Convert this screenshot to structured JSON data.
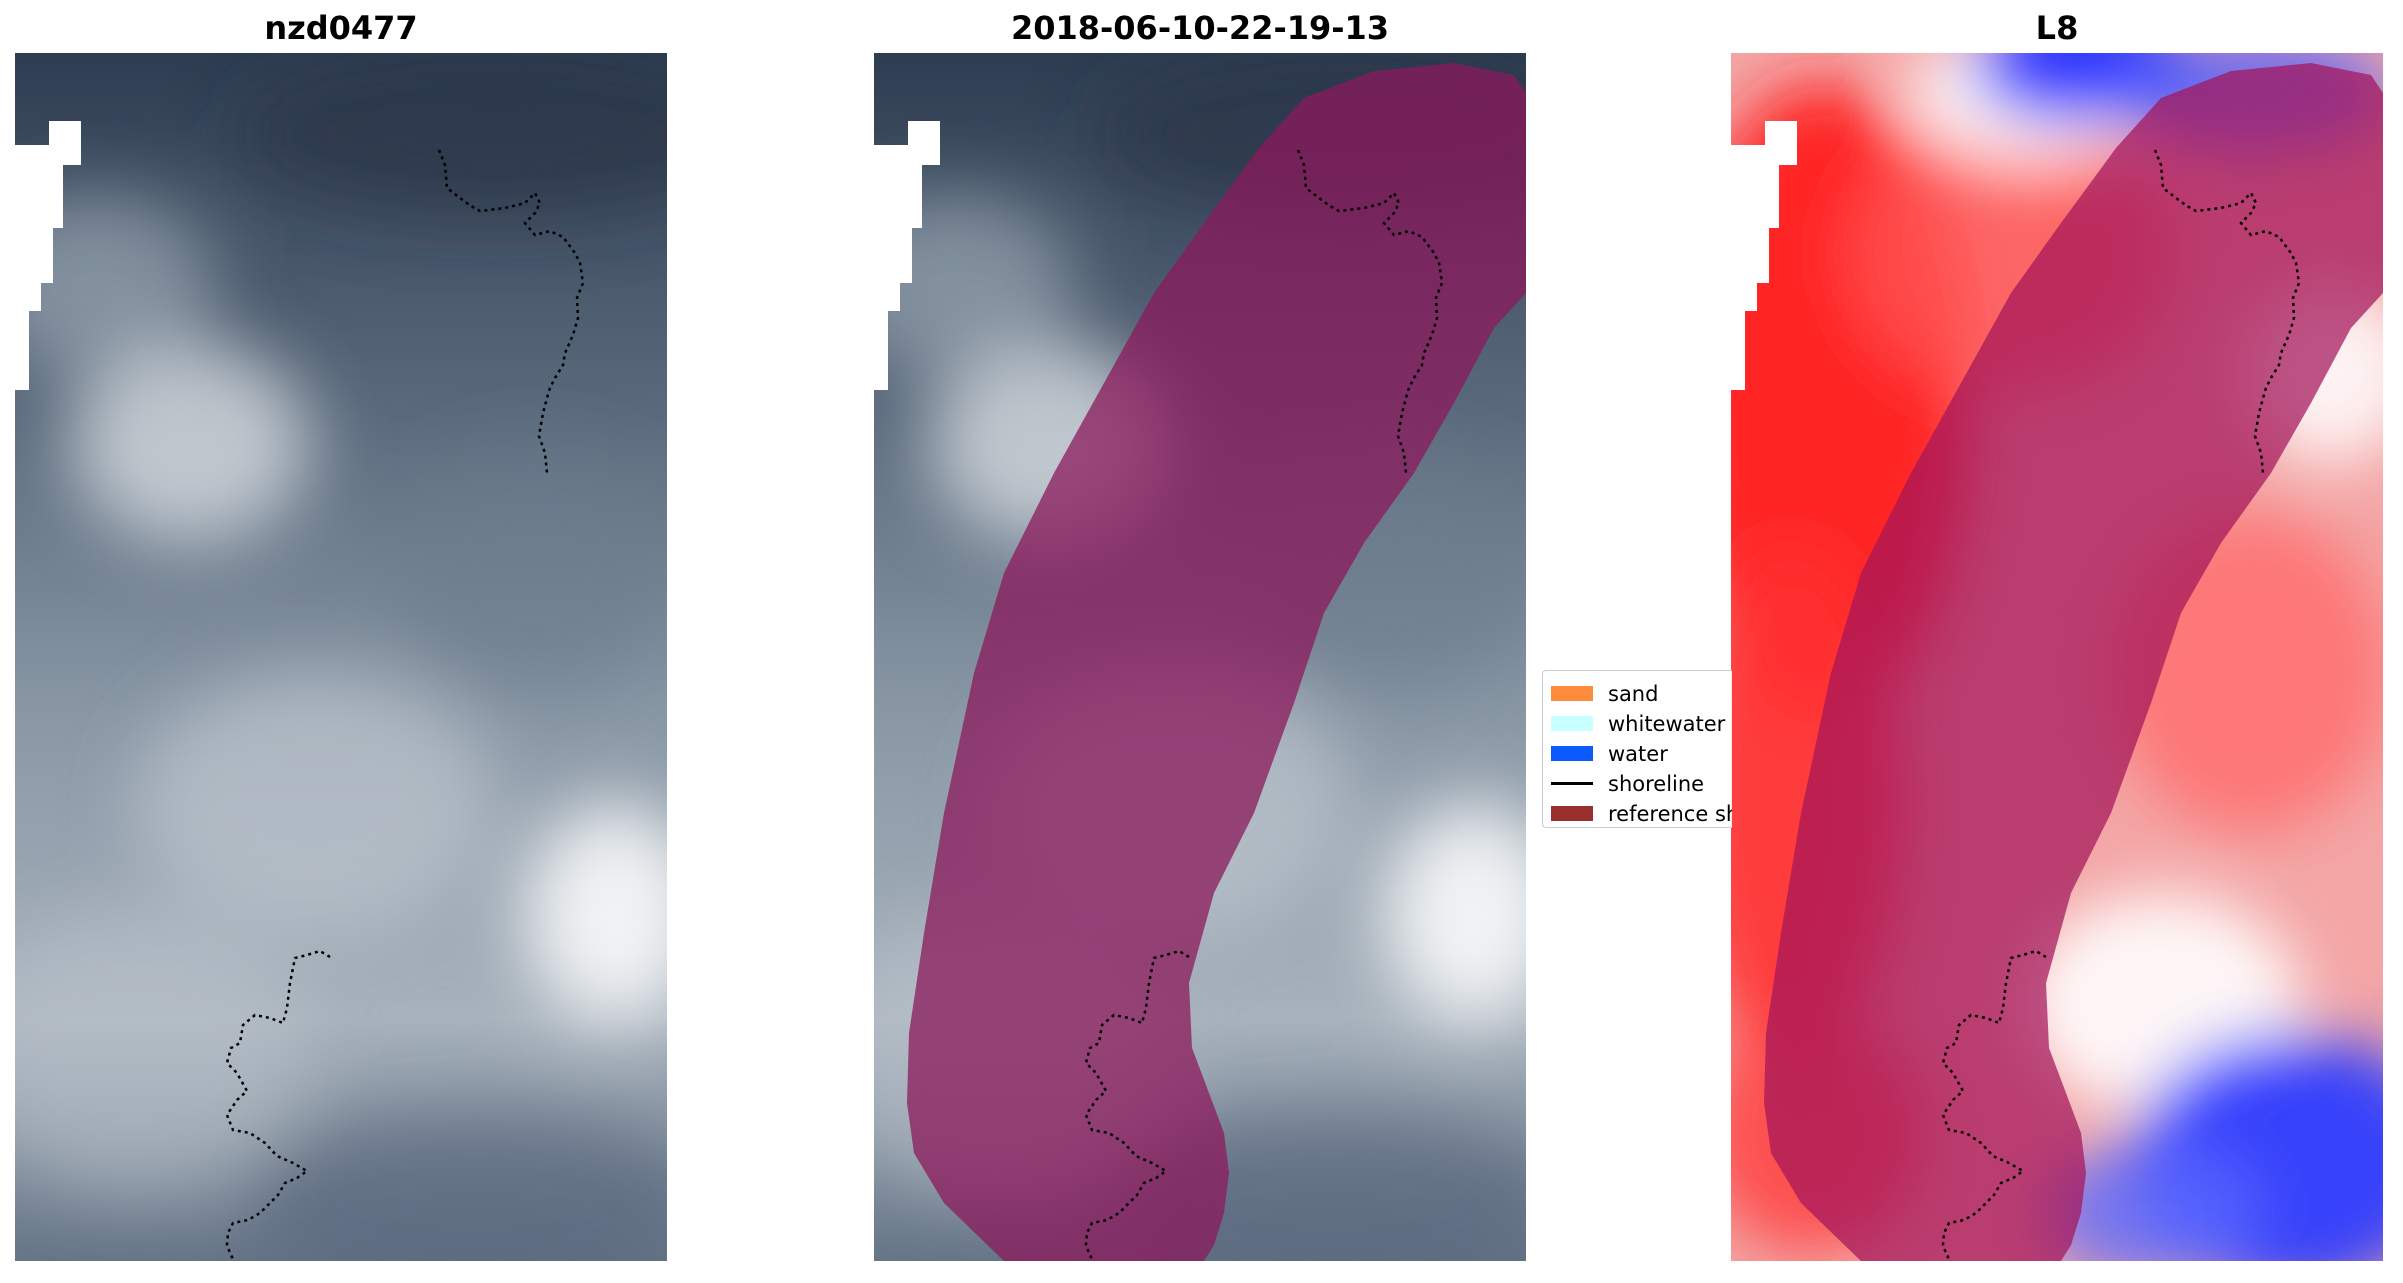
{
  "panels": [
    {
      "title": "nzd0477"
    },
    {
      "title": "2018-06-10-22-19-13"
    },
    {
      "title": "L8"
    }
  ],
  "legend": {
    "items": [
      {
        "label": "sand",
        "color": "#ff8c3a",
        "kind": "patch"
      },
      {
        "label": "whitewater",
        "color": "#c8ffff",
        "kind": "patch"
      },
      {
        "label": "water",
        "color": "#0a5aff",
        "kind": "patch"
      },
      {
        "label": "shoreline",
        "color": "#000000",
        "kind": "line"
      },
      {
        "label": "reference shoreline buffer",
        "color": "#9a2f30",
        "kind": "patch"
      }
    ]
  },
  "colors": {
    "buffer_overlay": "#8b1a5c",
    "buffer_on_index": "#a3155a",
    "shoreline": "#000000",
    "nodata": "#ffffff"
  }
}
